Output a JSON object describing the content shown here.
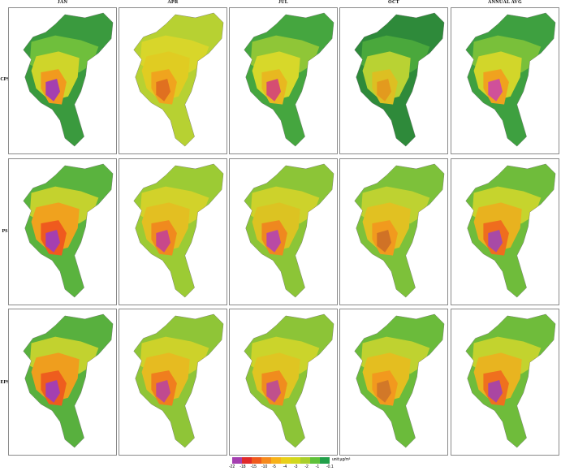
{
  "columns": [
    "JAN",
    "APR",
    "JUL",
    "OCT",
    "ANNUAL AVG"
  ],
  "rows": [
    "CPS",
    "PS",
    "EPS"
  ],
  "colorbar": {
    "unit": "unit:μg/m³",
    "ticks": [
      "-22",
      "-18",
      "-15",
      "-10",
      "-5",
      "-4",
      "-3",
      "-2",
      "-1",
      "-0.1"
    ],
    "colors": [
      "#a43fb0",
      "#e02a2a",
      "#ef5a1e",
      "#f58a1e",
      "#f7b21a",
      "#e9d01a",
      "#d1d81e",
      "#a9cf2c",
      "#5fc13a",
      "#22a04a"
    ]
  },
  "panels": [
    [
      "#3a9a3e",
      "#6fbf3c",
      "#cfd52a",
      "#f19a1e",
      "#a43fb0"
    ],
    [
      "#b7d132",
      "#d8d62a",
      "#e0cc22",
      "#f0a41e",
      "#e07020"
    ],
    [
      "#45a63f",
      "#8fc637",
      "#d7d82a",
      "#e8b820",
      "#d54e72"
    ],
    [
      "#2e8a3a",
      "#4aa83c",
      "#b9d233",
      "#ddbf22",
      "#e39a1e"
    ],
    [
      "#3ea040",
      "#79c03a",
      "#d2d62a",
      "#f0a21e",
      "#d0509a"
    ],
    [
      "#5ab33e",
      "#c4d22e",
      "#f0a21e",
      "#ef5a1e",
      "#a43fb0"
    ],
    [
      "#9ccb34",
      "#d2d22a",
      "#e3bf22",
      "#f08a1e",
      "#c8488a"
    ],
    [
      "#8cc537",
      "#cdd22b",
      "#dcc322",
      "#ef881f",
      "#b94aa4"
    ],
    [
      "#7dc13a",
      "#bed231",
      "#e1c122",
      "#f19a1e",
      "#d07226"
    ],
    [
      "#6fbc3b",
      "#c6d42d",
      "#e8b21f",
      "#ef6d1e",
      "#a84aa6"
    ],
    [
      "#58b03e",
      "#c2d22f",
      "#ef9e1e",
      "#ee5d1e",
      "#a43fb0"
    ],
    [
      "#8fc537",
      "#cdd22a",
      "#e6bb21",
      "#f07e1e",
      "#c04a90"
    ],
    [
      "#8cc437",
      "#cbd42b",
      "#dfc522",
      "#f08c1e",
      "#c0508c"
    ],
    [
      "#6bbb3b",
      "#bfd230",
      "#e4be20",
      "#f2991e",
      "#d27828"
    ],
    [
      "#6fbc3b",
      "#c3d32e",
      "#e8b420",
      "#ef701e",
      "#aa46a2"
    ]
  ]
}
